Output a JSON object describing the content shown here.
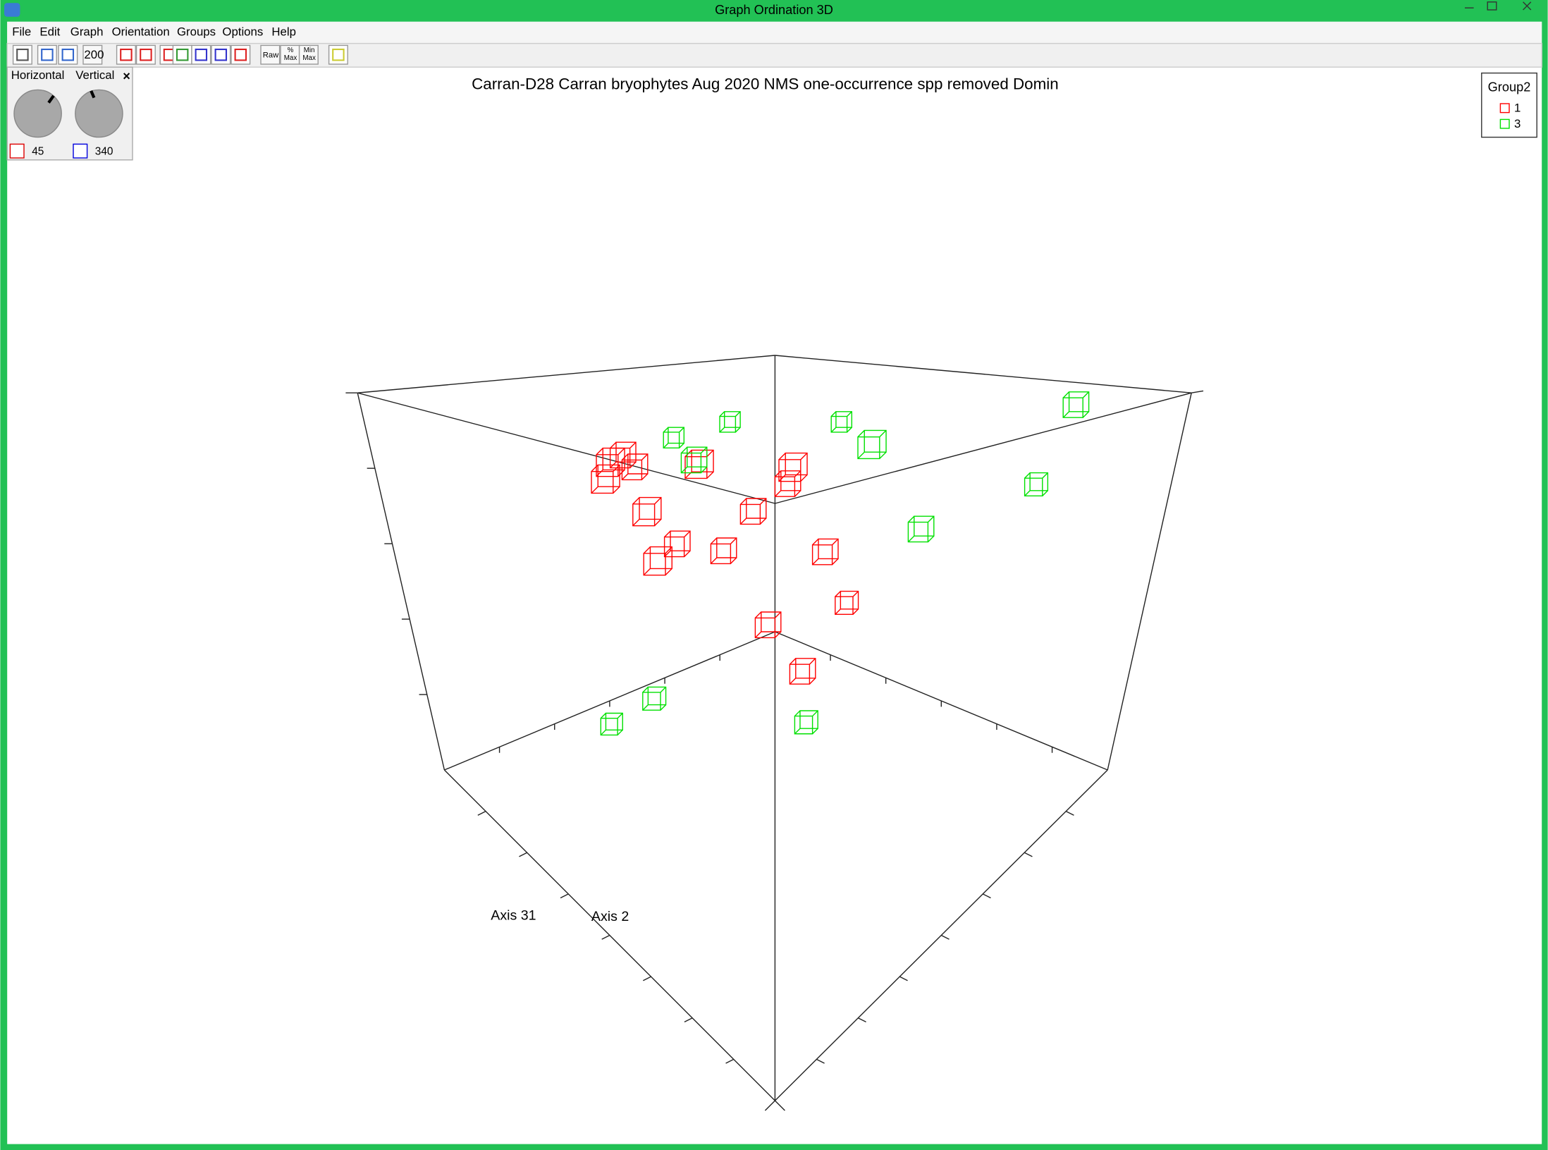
{
  "window": {
    "title": "Graph Ordination 3D"
  },
  "menu": [
    "File",
    "Edit",
    "Graph",
    "Orientation",
    "Groups",
    "Options",
    "Help"
  ],
  "toolbar": {
    "size": "200",
    "raw": "Raw",
    "max1": "%",
    "max2": "Max",
    "min1": "Min",
    "min2": "Max"
  },
  "rotation": {
    "horizontal_label": "Horizontal",
    "vertical_label": "Vertical",
    "horizontal": "45",
    "vertical": "340"
  },
  "graph": {
    "title": "Carran-D28 Carran bryophytes Aug 2020 NMS one-occurrence spp removed Domin",
    "legend_title": "Group2",
    "groups": [
      {
        "name": "1",
        "color": "#ff0000"
      },
      {
        "name": "3",
        "color": "#00e000"
      }
    ],
    "axis_a": "Axis 31",
    "axis_b": "Axis 2"
  }
}
